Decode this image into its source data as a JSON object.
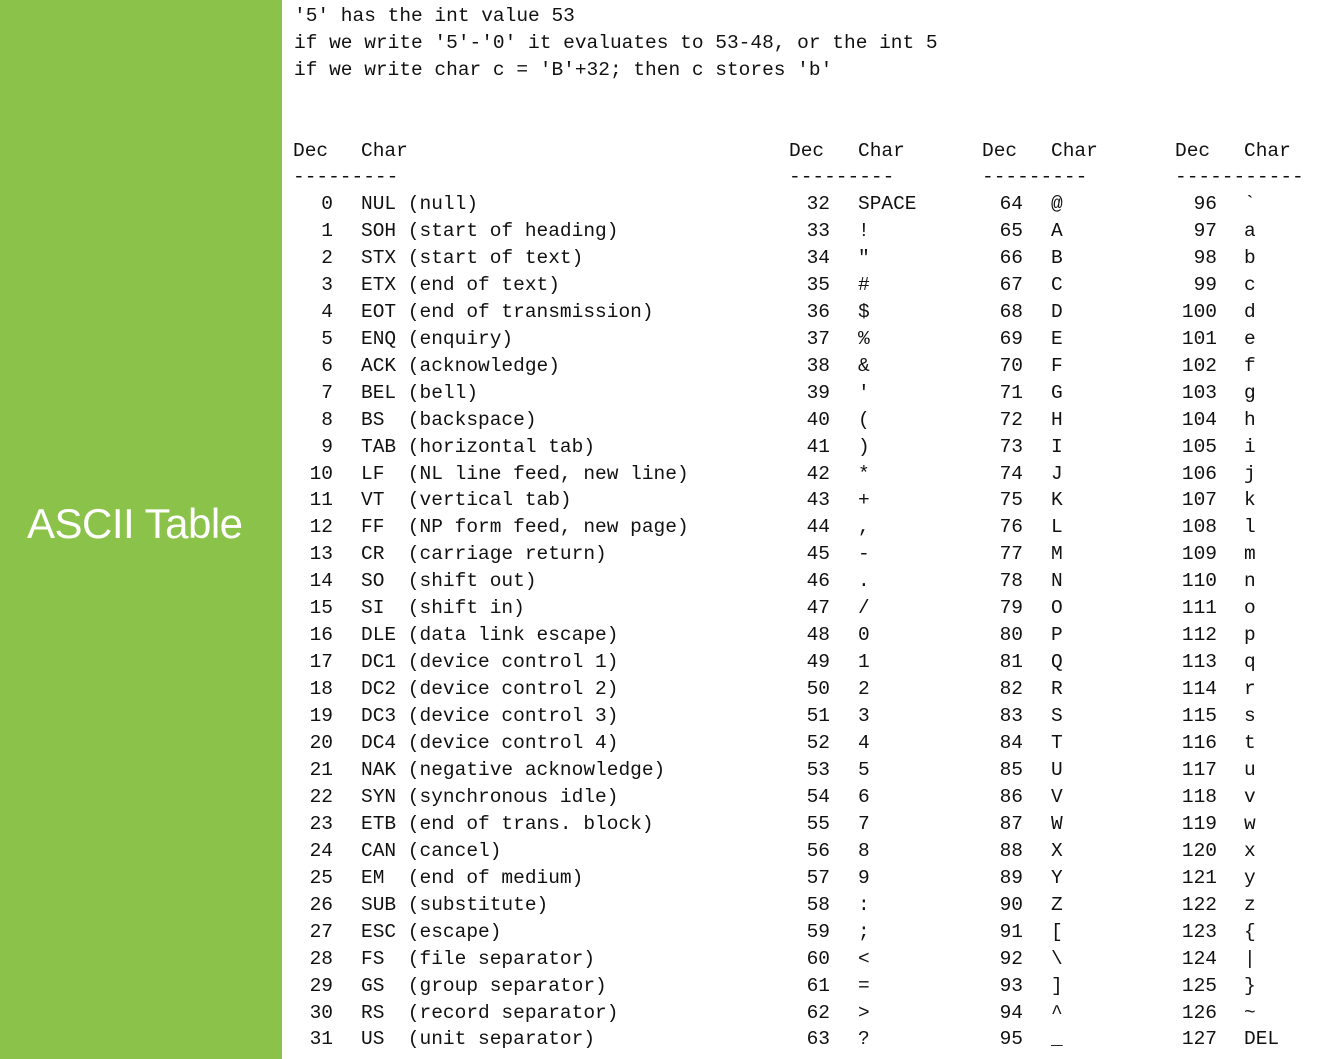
{
  "sidebar": {
    "title": "ASCII Table"
  },
  "notes": [
    "'5' has the int value 53",
    "if we write '5'-'0' it evaluates to 53-48, or the int 5",
    "if we write char c = 'B'+32; then c stores 'b'"
  ],
  "headers": {
    "dec": "Dec",
    "char": "Char",
    "separator": "---------",
    "separator_last": "-----------"
  },
  "columns": [
    {
      "rows": [
        {
          "dec": "0",
          "char": "NUL (null)"
        },
        {
          "dec": "1",
          "char": "SOH (start of heading)"
        },
        {
          "dec": "2",
          "char": "STX (start of text)"
        },
        {
          "dec": "3",
          "char": "ETX (end of text)"
        },
        {
          "dec": "4",
          "char": "EOT (end of transmission)"
        },
        {
          "dec": "5",
          "char": "ENQ (enquiry)"
        },
        {
          "dec": "6",
          "char": "ACK (acknowledge)"
        },
        {
          "dec": "7",
          "char": "BEL (bell)"
        },
        {
          "dec": "8",
          "char": "BS  (backspace)"
        },
        {
          "dec": "9",
          "char": "TAB (horizontal tab)"
        },
        {
          "dec": "10",
          "char": "LF  (NL line feed, new line)"
        },
        {
          "dec": "11",
          "char": "VT  (vertical tab)"
        },
        {
          "dec": "12",
          "char": "FF  (NP form feed, new page)"
        },
        {
          "dec": "13",
          "char": "CR  (carriage return)"
        },
        {
          "dec": "14",
          "char": "SO  (shift out)"
        },
        {
          "dec": "15",
          "char": "SI  (shift in)"
        },
        {
          "dec": "16",
          "char": "DLE (data link escape)"
        },
        {
          "dec": "17",
          "char": "DC1 (device control 1)"
        },
        {
          "dec": "18",
          "char": "DC2 (device control 2)"
        },
        {
          "dec": "19",
          "char": "DC3 (device control 3)"
        },
        {
          "dec": "20",
          "char": "DC4 (device control 4)"
        },
        {
          "dec": "21",
          "char": "NAK (negative acknowledge)"
        },
        {
          "dec": "22",
          "char": "SYN (synchronous idle)"
        },
        {
          "dec": "23",
          "char": "ETB (end of trans. block)"
        },
        {
          "dec": "24",
          "char": "CAN (cancel)"
        },
        {
          "dec": "25",
          "char": "EM  (end of medium)"
        },
        {
          "dec": "26",
          "char": "SUB (substitute)"
        },
        {
          "dec": "27",
          "char": "ESC (escape)"
        },
        {
          "dec": "28",
          "char": "FS  (file separator)"
        },
        {
          "dec": "29",
          "char": "GS  (group separator)"
        },
        {
          "dec": "30",
          "char": "RS  (record separator)"
        },
        {
          "dec": "31",
          "char": "US  (unit separator)"
        }
      ]
    },
    {
      "rows": [
        {
          "dec": "32",
          "char": "SPACE"
        },
        {
          "dec": "33",
          "char": "!"
        },
        {
          "dec": "34",
          "char": "\""
        },
        {
          "dec": "35",
          "char": "#"
        },
        {
          "dec": "36",
          "char": "$"
        },
        {
          "dec": "37",
          "char": "%"
        },
        {
          "dec": "38",
          "char": "&"
        },
        {
          "dec": "39",
          "char": "'"
        },
        {
          "dec": "40",
          "char": "("
        },
        {
          "dec": "41",
          "char": ")"
        },
        {
          "dec": "42",
          "char": "*"
        },
        {
          "dec": "43",
          "char": "+"
        },
        {
          "dec": "44",
          "char": ","
        },
        {
          "dec": "45",
          "char": "-"
        },
        {
          "dec": "46",
          "char": "."
        },
        {
          "dec": "47",
          "char": "/"
        },
        {
          "dec": "48",
          "char": "0"
        },
        {
          "dec": "49",
          "char": "1"
        },
        {
          "dec": "50",
          "char": "2"
        },
        {
          "dec": "51",
          "char": "3"
        },
        {
          "dec": "52",
          "char": "4"
        },
        {
          "dec": "53",
          "char": "5"
        },
        {
          "dec": "54",
          "char": "6"
        },
        {
          "dec": "55",
          "char": "7"
        },
        {
          "dec": "56",
          "char": "8"
        },
        {
          "dec": "57",
          "char": "9"
        },
        {
          "dec": "58",
          "char": ":"
        },
        {
          "dec": "59",
          "char": ";"
        },
        {
          "dec": "60",
          "char": "<"
        },
        {
          "dec": "61",
          "char": "="
        },
        {
          "dec": "62",
          "char": ">"
        },
        {
          "dec": "63",
          "char": "?"
        }
      ]
    },
    {
      "rows": [
        {
          "dec": "64",
          "char": "@"
        },
        {
          "dec": "65",
          "char": "A"
        },
        {
          "dec": "66",
          "char": "B"
        },
        {
          "dec": "67",
          "char": "C"
        },
        {
          "dec": "68",
          "char": "D"
        },
        {
          "dec": "69",
          "char": "E"
        },
        {
          "dec": "70",
          "char": "F"
        },
        {
          "dec": "71",
          "char": "G"
        },
        {
          "dec": "72",
          "char": "H"
        },
        {
          "dec": "73",
          "char": "I"
        },
        {
          "dec": "74",
          "char": "J"
        },
        {
          "dec": "75",
          "char": "K"
        },
        {
          "dec": "76",
          "char": "L"
        },
        {
          "dec": "77",
          "char": "M"
        },
        {
          "dec": "78",
          "char": "N"
        },
        {
          "dec": "79",
          "char": "O"
        },
        {
          "dec": "80",
          "char": "P"
        },
        {
          "dec": "81",
          "char": "Q"
        },
        {
          "dec": "82",
          "char": "R"
        },
        {
          "dec": "83",
          "char": "S"
        },
        {
          "dec": "84",
          "char": "T"
        },
        {
          "dec": "85",
          "char": "U"
        },
        {
          "dec": "86",
          "char": "V"
        },
        {
          "dec": "87",
          "char": "W"
        },
        {
          "dec": "88",
          "char": "X"
        },
        {
          "dec": "89",
          "char": "Y"
        },
        {
          "dec": "90",
          "char": "Z"
        },
        {
          "dec": "91",
          "char": "["
        },
        {
          "dec": "92",
          "char": "\\"
        },
        {
          "dec": "93",
          "char": "]"
        },
        {
          "dec": "94",
          "char": "^"
        },
        {
          "dec": "95",
          "char": "_"
        }
      ]
    },
    {
      "rows": [
        {
          "dec": "96",
          "char": "`"
        },
        {
          "dec": "97",
          "char": "a"
        },
        {
          "dec": "98",
          "char": "b"
        },
        {
          "dec": "99",
          "char": "c"
        },
        {
          "dec": "100",
          "char": "d"
        },
        {
          "dec": "101",
          "char": "e"
        },
        {
          "dec": "102",
          "char": "f"
        },
        {
          "dec": "103",
          "char": "g"
        },
        {
          "dec": "104",
          "char": "h"
        },
        {
          "dec": "105",
          "char": "i"
        },
        {
          "dec": "106",
          "char": "j"
        },
        {
          "dec": "107",
          "char": "k"
        },
        {
          "dec": "108",
          "char": "l"
        },
        {
          "dec": "109",
          "char": "m"
        },
        {
          "dec": "110",
          "char": "n"
        },
        {
          "dec": "111",
          "char": "o"
        },
        {
          "dec": "112",
          "char": "p"
        },
        {
          "dec": "113",
          "char": "q"
        },
        {
          "dec": "114",
          "char": "r"
        },
        {
          "dec": "115",
          "char": "s"
        },
        {
          "dec": "116",
          "char": "t"
        },
        {
          "dec": "117",
          "char": "u"
        },
        {
          "dec": "118",
          "char": "v"
        },
        {
          "dec": "119",
          "char": "w"
        },
        {
          "dec": "120",
          "char": "x"
        },
        {
          "dec": "121",
          "char": "y"
        },
        {
          "dec": "122",
          "char": "z"
        },
        {
          "dec": "123",
          "char": "{"
        },
        {
          "dec": "124",
          "char": "|"
        },
        {
          "dec": "125",
          "char": "}"
        },
        {
          "dec": "126",
          "char": "~"
        },
        {
          "dec": "127",
          "char": "DEL"
        }
      ]
    }
  ],
  "colors": {
    "sidebar": "#8bc34a",
    "text": "#111111",
    "sidebar_text": "#ffffff"
  }
}
